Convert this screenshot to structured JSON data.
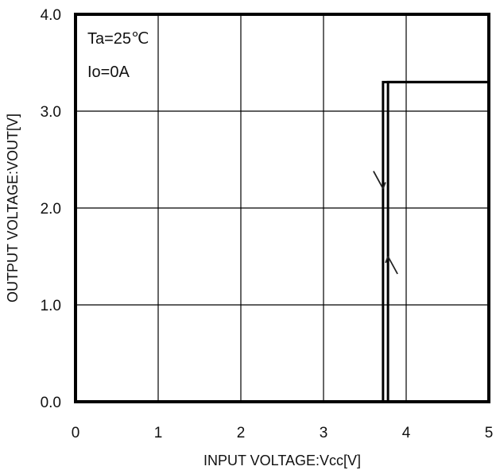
{
  "chart_data": {
    "type": "line",
    "xlabel": "INPUT VOLTAGE:Vcc[V]",
    "ylabel": "OUTPUT VOLTAGE:VOUT[V]",
    "xlim": [
      0,
      5
    ],
    "ylim": [
      0,
      4
    ],
    "x_ticks": [
      "0",
      "1",
      "2",
      "3",
      "4",
      "5"
    ],
    "y_ticks": [
      "0.0",
      "1.0",
      "2.0",
      "3.0",
      "4.0"
    ],
    "grid": true,
    "annotations": [
      "Ta=25℃",
      "Io=0A"
    ],
    "series": [
      {
        "direction": "rising",
        "x": [
          0,
          3.78,
          3.78,
          5
        ],
        "y": [
          0,
          0,
          3.3,
          3.3
        ]
      },
      {
        "direction": "falling",
        "x": [
          5,
          3.72,
          3.72,
          0
        ],
        "y": [
          3.3,
          3.3,
          0,
          0
        ]
      }
    ],
    "arrows": [
      {
        "series": "falling",
        "x": 3.72,
        "y": 2.2,
        "direction": "down"
      },
      {
        "series": "rising",
        "x": 3.78,
        "y": 1.5,
        "direction": "up"
      }
    ]
  }
}
